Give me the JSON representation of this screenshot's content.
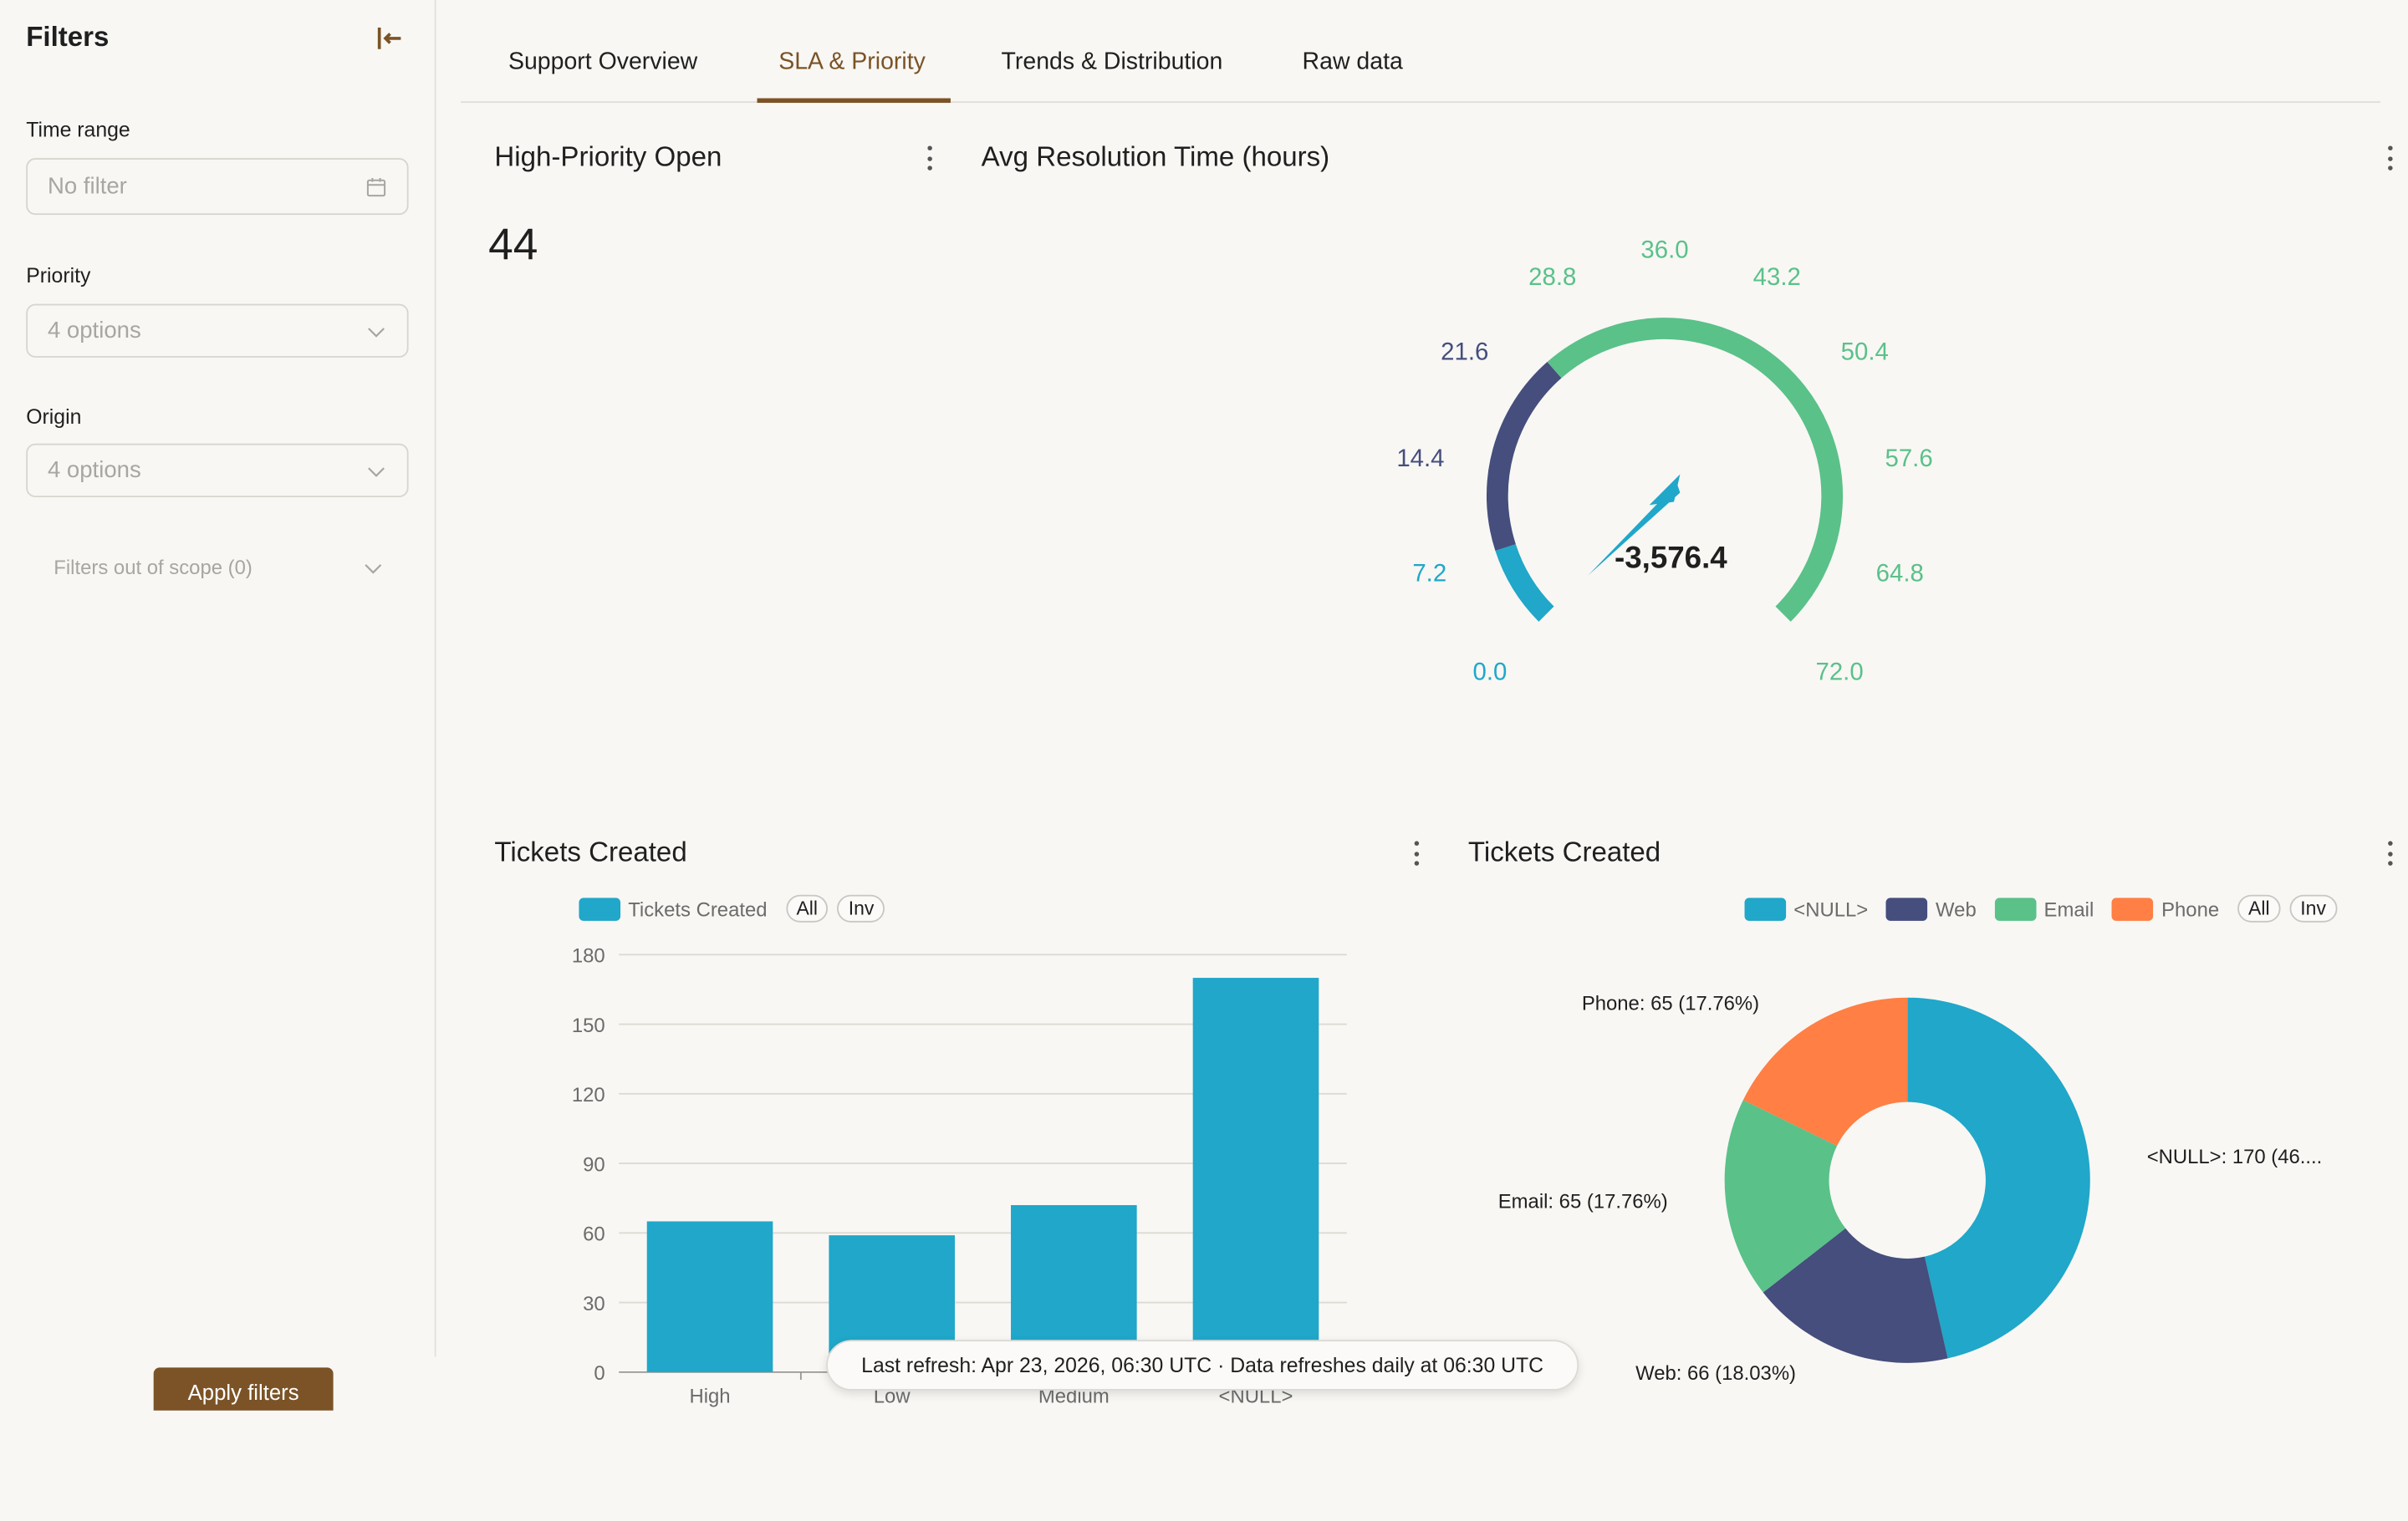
{
  "sidebar": {
    "title": "Filters",
    "time_range": {
      "label": "Time range",
      "value": "No filter"
    },
    "priority": {
      "label": "Priority",
      "value": "4 options"
    },
    "origin": {
      "label": "Origin",
      "value": "4 options"
    },
    "scope": "Filters out of scope (0)",
    "apply_label": "Apply filters"
  },
  "tabs": [
    {
      "label": "Support Overview"
    },
    {
      "label": "SLA & Priority",
      "active": true
    },
    {
      "label": "Trends & Distribution"
    },
    {
      "label": "Raw data"
    }
  ],
  "kpi": {
    "title": "High-Priority Open",
    "value": "44"
  },
  "gauge": {
    "title": "Avg Resolution Time (hours)",
    "value_label": "-3,576.4",
    "min": 0,
    "max": 72,
    "ticks": [
      "0.0",
      "7.2",
      "14.4",
      "21.6",
      "28.8",
      "36.0",
      "43.2",
      "50.4",
      "57.6",
      "64.8",
      "72.0"
    ],
    "bands": [
      {
        "from": 0,
        "to": 7.2,
        "color": "#20a7c9"
      },
      {
        "from": 7.2,
        "to": 25,
        "color": "#454e7c"
      },
      {
        "from": 25,
        "to": 72,
        "color": "#5ac189"
      }
    ]
  },
  "bar_card": {
    "title": "Tickets Created",
    "legend": {
      "label": "Tickets Created",
      "all": "All",
      "inv": "Inv"
    }
  },
  "pie_card": {
    "title": "Tickets Created",
    "legend": [
      {
        "label": "<NULL>",
        "color": "#20a7c9"
      },
      {
        "label": "Web",
        "color": "#454e7c"
      },
      {
        "label": "Email",
        "color": "#5ac189"
      },
      {
        "label": "Phone",
        "color": "#ff7f44"
      }
    ],
    "all": "All",
    "inv": "Inv"
  },
  "chart_data": [
    {
      "type": "bar",
      "title": "Tickets Created",
      "categories": [
        "High",
        "Low",
        "Medium",
        "<NULL>"
      ],
      "series": [
        {
          "name": "Tickets Created",
          "values": [
            65,
            59,
            72,
            170
          ]
        }
      ],
      "ylim": [
        0,
        180
      ],
      "yticks": [
        0,
        30,
        60,
        90,
        120,
        150,
        180
      ],
      "grid": true,
      "color": "#20a7c9"
    },
    {
      "type": "pie",
      "title": "Tickets Created",
      "labels": [
        "<NULL>",
        "Web",
        "Email",
        "Phone"
      ],
      "values": [
        170,
        66,
        65,
        65
      ],
      "data_labels": [
        "<NULL>: 170 (46....",
        "Web: 66 (18.03%)",
        "Email: 65 (17.76%)",
        "Phone: 65 (17.76%)"
      ],
      "colors": [
        "#20a7c9",
        "#454e7c",
        "#5ac189",
        "#ff7f44"
      ],
      "donut": true
    }
  ],
  "toast": "Last refresh: Apr 23, 2026, 06:30 UTC · Data refreshes daily at 06:30 UTC"
}
